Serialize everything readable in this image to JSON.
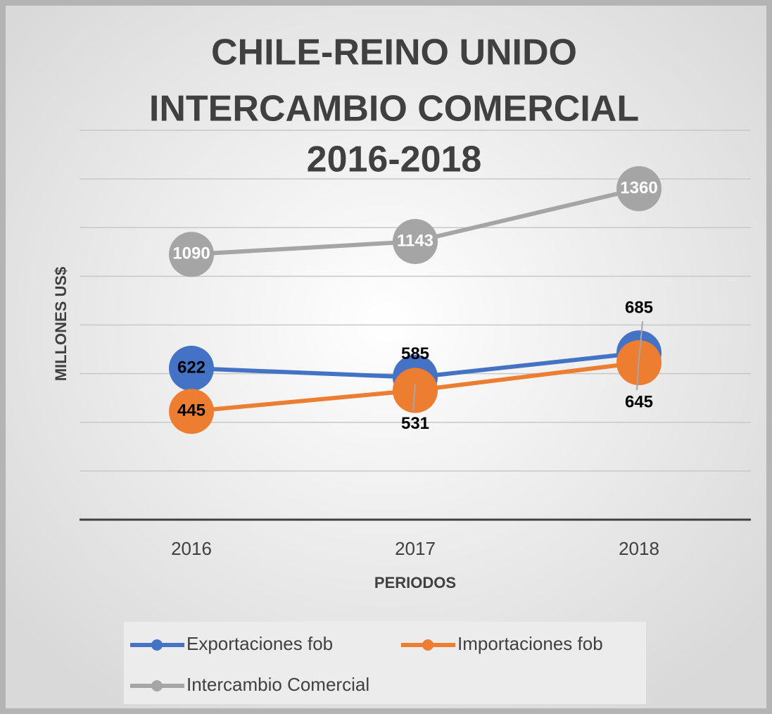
{
  "chart_data": {
    "type": "line",
    "title": [
      "CHILE-REINO UNIDO",
      "INTERCAMBIO COMERCIAL",
      "2016-2018"
    ],
    "x_label": "PERIODOS",
    "y_label": "MILLONES US$",
    "categories": [
      "2016",
      "2017",
      "2018"
    ],
    "series": [
      {
        "name": "Exportaciones fob",
        "color": "#4472c4",
        "values": [
          622,
          585,
          685
        ]
      },
      {
        "name": "Importaciones fob",
        "color": "#ed7d31",
        "values": [
          445,
          531,
          645
        ]
      },
      {
        "name": "Intercambio Comercial",
        "color": "#a5a5a5",
        "values": [
          1090,
          1143,
          1360
        ]
      }
    ],
    "ylim": [
      0,
      1600
    ],
    "yticks": [
      0,
      200,
      400,
      600,
      800,
      1000,
      1200,
      1400,
      1600
    ],
    "grid": true,
    "legend": "bottom"
  }
}
